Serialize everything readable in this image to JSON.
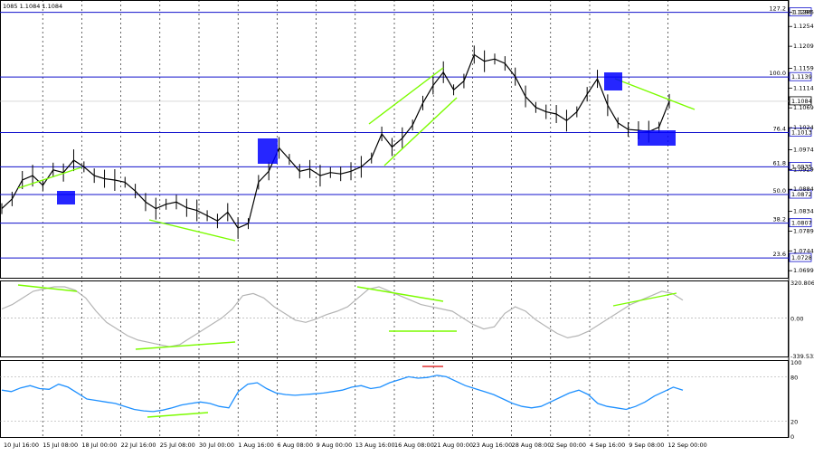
{
  "header": {
    "text": "1085 1.1084 1.1084"
  },
  "chart_data": [
    {
      "type": "line",
      "name": "price",
      "y_ticks": [
        "1.1286",
        "1.1254",
        "1.1209",
        "1.1159",
        "1.1114",
        "1.1069",
        "1.1024",
        "1.0974",
        "1.0929",
        "1.0884",
        "1.0834",
        "1.0789",
        "1.0744",
        "1.0699"
      ],
      "ylim": [
        1.0685,
        1.131
      ],
      "x_labels": [
        "10 Jul 16:00",
        "15 Jul 08:00",
        "18 Jul 00:00",
        "22 Jul 16:00",
        "25 Jul 08:00",
        "30 Jul 00:00",
        "1 Aug 16:00",
        "6 Aug 08:00",
        "9 Aug 00:00",
        "13 Aug 16:00",
        "16 Aug 08:00",
        "21 Aug 00:00",
        "23 Aug 16:00",
        "28 Aug 08:00",
        "2 Sep 00:00",
        "4 Sep 16:00",
        "9 Sep 08:00",
        "12 Sep 00:00"
      ],
      "fib_levels": [
        {
          "pct": "127.2",
          "price": "1.1286",
          "value": 1.1286
        },
        {
          "pct": "100.0",
          "price": "1.1139",
          "value": 1.1139
        },
        {
          "pct": "76.4",
          "price": "1.1013",
          "value": 1.1013
        },
        {
          "pct": "61.8",
          "price": "1.0935",
          "value": 1.0935
        },
        {
          "pct": "50.0",
          "price": "1.0872",
          "value": 1.0872
        },
        {
          "pct": "38.2",
          "price": "1.0807",
          "value": 1.0807
        },
        {
          "pct": "23.6",
          "price": "1.0728",
          "value": 1.0728
        }
      ],
      "current_price": "1.1084",
      "current_value": 1.1084,
      "values": [
        1.084,
        1.0862,
        1.0905,
        1.0915,
        1.0893,
        1.0928,
        1.0922,
        1.095,
        1.0935,
        1.0915,
        1.0908,
        1.0905,
        1.09,
        1.088,
        1.0855,
        1.084,
        1.085,
        1.0855,
        1.0842,
        1.0836,
        1.0824,
        1.0812,
        1.0832,
        1.0796,
        1.0806,
        1.09,
        1.0925,
        1.0978,
        1.0952,
        1.0925,
        1.093,
        1.0915,
        1.0922,
        1.0919,
        1.0925,
        1.0935,
        1.0955,
        1.101,
        1.098,
        1.1,
        1.103,
        1.108,
        1.112,
        1.115,
        1.111,
        1.113,
        1.119,
        1.1175,
        1.118,
        1.117,
        1.114,
        1.1095,
        1.107,
        1.106,
        1.1055,
        1.104,
        1.106,
        1.11,
        1.1135,
        1.1075,
        1.1035,
        1.102,
        1.1018,
        1.1015,
        1.1025,
        1.1084
      ],
      "series_color": "#000000",
      "level_color": "#1010cc",
      "trend_color": "#7cfc00",
      "box_color": "#0000ff"
    },
    {
      "type": "line",
      "name": "cci",
      "y_ticks": [
        "320.8062",
        "0.00",
        "-339.532"
      ],
      "ylim": [
        -339.532,
        320.8062
      ],
      "values": [
        80,
        120,
        180,
        240,
        260,
        280,
        280,
        250,
        180,
        60,
        -40,
        -100,
        -160,
        -200,
        -220,
        -240,
        -260,
        -240,
        -180,
        -120,
        -60,
        0,
        80,
        200,
        220,
        180,
        100,
        40,
        -20,
        -40,
        -10,
        30,
        60,
        100,
        180,
        260,
        280,
        240,
        200,
        160,
        120,
        100,
        80,
        60,
        0,
        -60,
        -100,
        -80,
        40,
        100,
        60,
        -20,
        -80,
        -140,
        -180,
        -160,
        -120,
        -60,
        0,
        60,
        120,
        160,
        200,
        240,
        220,
        160
      ],
      "series_color": "#b4b4b4",
      "zero_color": "#888888"
    },
    {
      "type": "line",
      "name": "rsi",
      "y_ticks": [
        "100",
        "80",
        "20",
        "0"
      ],
      "ylim": [
        0,
        100
      ],
      "values": [
        62,
        60,
        65,
        68,
        64,
        63,
        70,
        66,
        58,
        50,
        48,
        46,
        44,
        40,
        36,
        34,
        33,
        35,
        38,
        42,
        44,
        46,
        44,
        40,
        38,
        60,
        70,
        72,
        64,
        58,
        56,
        55,
        56,
        57,
        58,
        60,
        62,
        66,
        68,
        64,
        66,
        72,
        76,
        80,
        78,
        79,
        82,
        80,
        74,
        68,
        64,
        60,
        56,
        50,
        44,
        40,
        38,
        40,
        46,
        52,
        58,
        62,
        56,
        44,
        40,
        38,
        36,
        40,
        46,
        54,
        60,
        66,
        62
      ],
      "series_color": "#1e90ff",
      "level_color": "#999999"
    }
  ]
}
